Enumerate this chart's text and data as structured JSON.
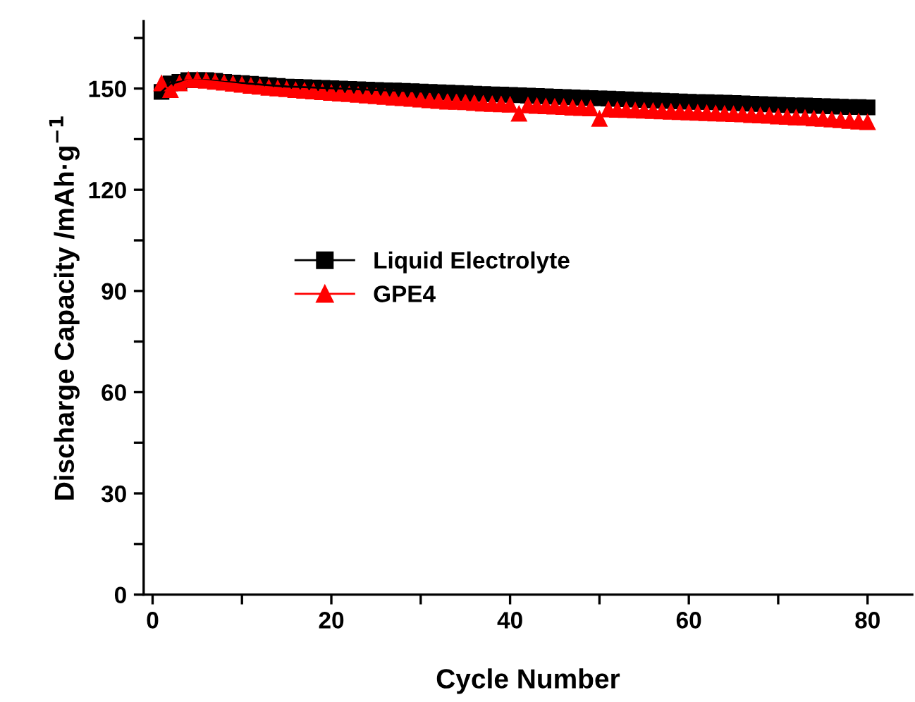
{
  "chart_data": {
    "type": "line",
    "xlabel": "Cycle Number",
    "ylabel": "Discharge Capacity /mAh·g$^{−1}$",
    "x": [
      1,
      2,
      3,
      4,
      5,
      6,
      7,
      8,
      9,
      10,
      11,
      12,
      13,
      14,
      15,
      16,
      17,
      18,
      19,
      20,
      21,
      22,
      23,
      24,
      25,
      26,
      27,
      28,
      29,
      30,
      31,
      32,
      33,
      34,
      35,
      36,
      37,
      38,
      39,
      40,
      41,
      42,
      43,
      44,
      45,
      46,
      47,
      48,
      49,
      50,
      51,
      52,
      53,
      54,
      55,
      56,
      57,
      58,
      59,
      60,
      61,
      62,
      63,
      64,
      65,
      66,
      67,
      68,
      69,
      70,
      71,
      72,
      73,
      74,
      75,
      76,
      77,
      78,
      79,
      80
    ],
    "series": [
      {
        "name": "Liquid Electrolyte",
        "color": "#000000",
        "marker": "square",
        "values": [
          149,
          151.5,
          152,
          152.5,
          152.5,
          152.5,
          152.3,
          152,
          151.8,
          151.6,
          151.4,
          151.2,
          151,
          150.8,
          150.6,
          150.5,
          150.4,
          150.3,
          150.2,
          150.1,
          150,
          149.9,
          149.8,
          149.7,
          149.6,
          149.5,
          149.4,
          149.3,
          149.2,
          149.1,
          149,
          148.9,
          148.8,
          148.7,
          148.6,
          148.5,
          148.4,
          148.3,
          148.2,
          148.1,
          148,
          147.9,
          147.8,
          147.7,
          147.6,
          147.5,
          147.4,
          147.3,
          147.2,
          147.1,
          147,
          146.9,
          146.8,
          146.7,
          146.6,
          146.5,
          146.4,
          146.3,
          146.2,
          146.1,
          146,
          146,
          145.9,
          145.8,
          145.7,
          145.6,
          145.5,
          145.4,
          145.3,
          145.2,
          145.1,
          145,
          145,
          144.9,
          144.8,
          144.7,
          144.6,
          144.5,
          144.5,
          144.4
        ]
      },
      {
        "name": "GPE4",
        "color": "#ff0000",
        "marker": "triangle",
        "values": [
          151.5,
          149.5,
          151.5,
          152.5,
          152.5,
          152.3,
          152,
          151.7,
          151.4,
          151.1,
          150.8,
          150.5,
          150.2,
          150,
          149.8,
          149.5,
          149.3,
          149.1,
          148.9,
          148.7,
          148.5,
          148.3,
          148.1,
          147.9,
          147.7,
          147.5,
          147.3,
          147.1,
          146.9,
          146.7,
          146.5,
          146.3,
          146.1,
          146,
          145.9,
          145.7,
          145.5,
          145.4,
          145.3,
          145.2,
          142.5,
          145,
          144.8,
          144.7,
          144.6,
          144.5,
          144.3,
          144.2,
          144.1,
          141,
          143.8,
          143.7,
          143.6,
          143.5,
          143.4,
          143.3,
          143.2,
          143.1,
          143,
          142.9,
          142.8,
          142.7,
          142.6,
          142.5,
          142.4,
          142.3,
          142.1,
          142,
          141.9,
          141.7,
          141.6,
          141.4,
          141.3,
          141.1,
          141,
          140.8,
          140.6,
          140.4,
          140.2,
          140
        ]
      }
    ],
    "xlim": [
      -1,
      85
    ],
    "xticks": [
      0,
      {
        "value": 10,
        "label": null
      },
      20,
      {
        "value": 30,
        "label": null
      },
      40,
      {
        "value": 50,
        "label": null
      },
      60,
      {
        "value": 70,
        "label": null
      },
      80
    ],
    "ylim": [
      0,
      170
    ],
    "yticks": [
      0,
      {
        "value": 15,
        "label": null
      },
      30,
      {
        "value": 45,
        "label": null
      },
      60,
      {
        "value": 75,
        "label": null
      },
      90,
      {
        "value": 105,
        "label": null
      },
      120,
      {
        "value": 135,
        "label": null
      },
      150,
      {
        "value": 165,
        "label": null
      }
    ],
    "legend": "center left",
    "line_style": "solid",
    "grid": false
  }
}
